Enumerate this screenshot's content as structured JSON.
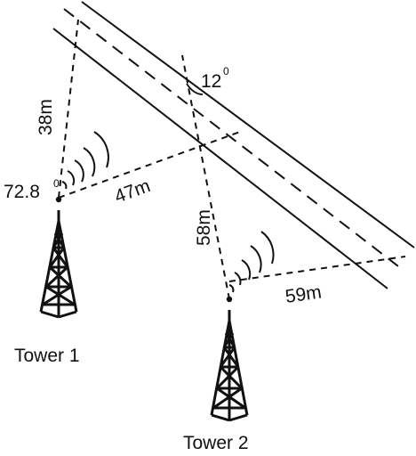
{
  "diagram": {
    "colors": {
      "ink": "#111111",
      "background": "#ffffff"
    },
    "labels": {
      "dist_t1_road_upper": "38m",
      "dist_t1_road_mid": "47m",
      "dist_t2_road_upper": "58m",
      "dist_t2_road_lower": "59m",
      "angle_road": "12",
      "angle_tower1": "72.8",
      "degree_mark": "0"
    },
    "towers": [
      {
        "name": "Tower 1"
      },
      {
        "name": "Tower 2"
      }
    ],
    "icons": [
      "radio-tower-icon",
      "signal-waves-icon"
    ]
  }
}
